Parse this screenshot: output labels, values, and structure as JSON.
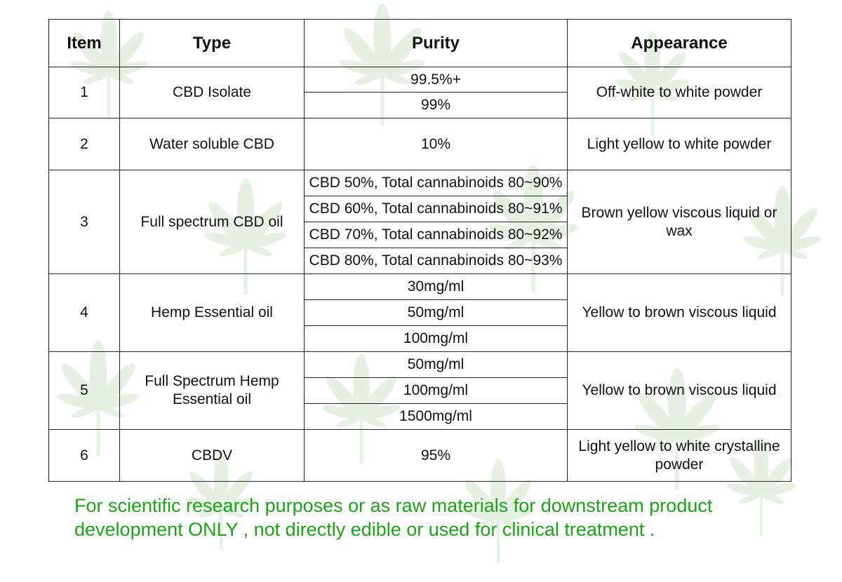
{
  "table": {
    "headers": [
      "Item",
      "Type",
      "Purity",
      "Appearance"
    ],
    "rows": [
      {
        "item": "1",
        "type": "CBD Isolate",
        "purity": [
          "99.5%+",
          "99%"
        ],
        "appearance": "Off-white to white powder"
      },
      {
        "item": "2",
        "type": "Water soluble CBD",
        "purity": [
          "10%"
        ],
        "appearance": "Light yellow to white powder"
      },
      {
        "item": "3",
        "type": "Full spectrum CBD oil",
        "purity": [
          "CBD 50%, Total cannabinoids 80~90%",
          "CBD 60%, Total cannabinoids 80~91%",
          "CBD 70%, Total cannabinoids 80~92%",
          "CBD 80%, Total cannabinoids 80~93%"
        ],
        "appearance": "Brown yellow viscous liquid or wax"
      },
      {
        "item": "4",
        "type": "Hemp Essential oil",
        "purity": [
          "30mg/ml",
          "50mg/ml",
          "100mg/ml"
        ],
        "appearance": "Yellow to brown viscous liquid"
      },
      {
        "item": "5",
        "type": "Full Spectrum Hemp Essential oil",
        "purity": [
          "50mg/ml",
          "100mg/ml",
          "1500mg/ml"
        ],
        "appearance": "Yellow to brown viscous liquid"
      },
      {
        "item": "6",
        "type": "CBDV",
        "purity": [
          "95%"
        ],
        "appearance": "Light yellow to white crystalline powder"
      }
    ]
  },
  "footer": {
    "text": "For scientific research purposes or as raw materials for downstream product development ONLY , not directly edible or used for clinical treatment ."
  },
  "colors": {
    "footer_text": "#1aa515",
    "watermark_leaf": "#4a9a3a",
    "border": "#222222"
  },
  "icons": {
    "background": "hemp-leaf-icon"
  }
}
